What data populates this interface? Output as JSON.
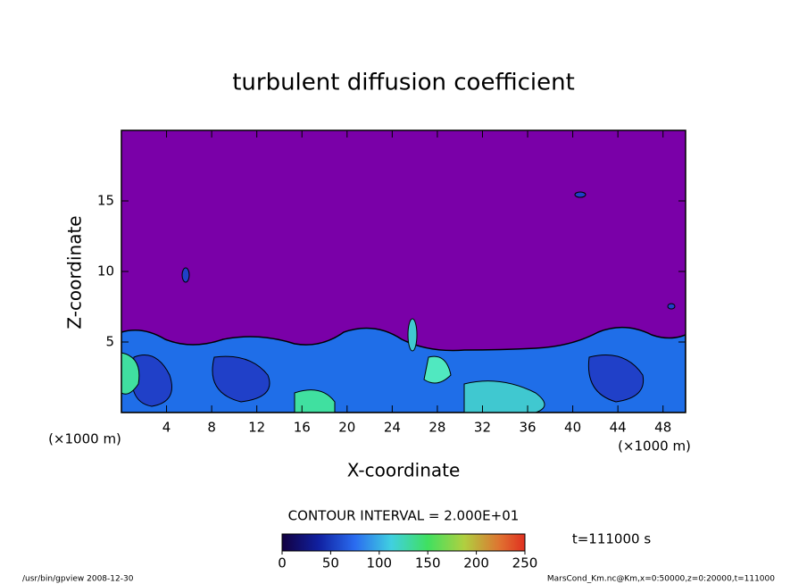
{
  "chart_data": {
    "type": "contour",
    "title": "turbulent diffusion coefficient",
    "xlabel": "X-coordinate",
    "ylabel": "Z-coordinate",
    "axis_unit": "(×1000 m)",
    "xlim": [
      0,
      50
    ],
    "xticks": [
      4,
      8,
      12,
      16,
      20,
      24,
      28,
      32,
      36,
      40,
      44,
      48
    ],
    "ylim": [
      0,
      20
    ],
    "yticks": [
      5,
      10,
      15
    ],
    "colorbar": {
      "lim": [
        0,
        250
      ],
      "ticks": [
        0,
        50,
        100,
        150,
        200,
        250
      ]
    },
    "contour_interval": "CONTOUR INTERVAL = 2.000E+01",
    "time_label": "t=111000 s",
    "footer_left": "/usr/bin/gpview  2008-12-30",
    "footer_right": "MarsCond_Km.nc@Km,x=0:50000,z=0:20000,t=111000"
  }
}
